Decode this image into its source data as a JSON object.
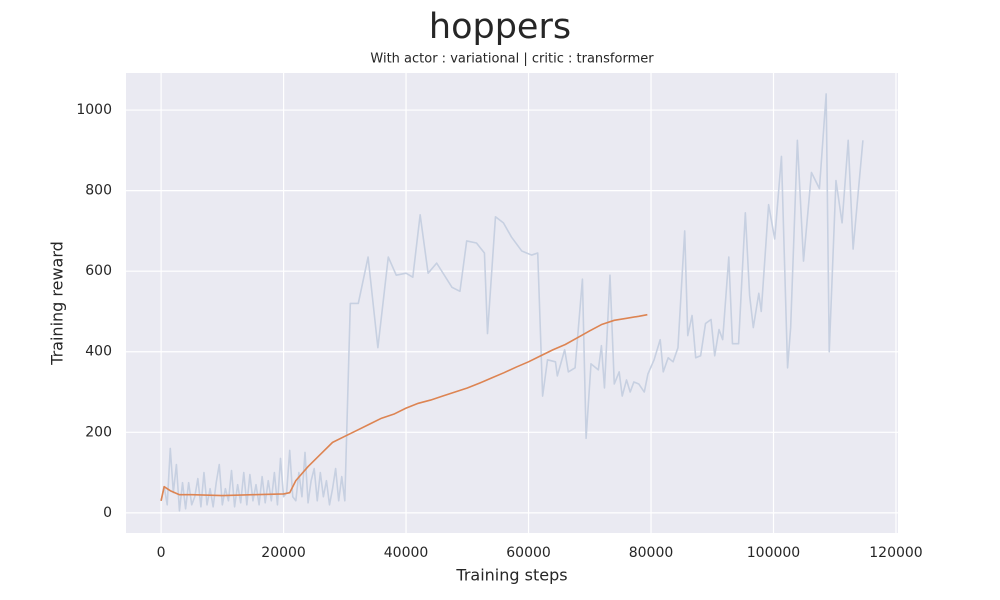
{
  "chart_data": {
    "type": "line",
    "title": "hoppers",
    "subtitle": "With actor : variational | critic : transformer",
    "x_label": "Training steps",
    "y_label": "Training reward",
    "xlim": [
      -5730,
      120330
    ],
    "ylim": [
      -50,
      1092
    ],
    "xticks": [
      0,
      20000,
      40000,
      60000,
      80000,
      100000,
      120000
    ],
    "yticks": [
      0,
      200,
      400,
      600,
      800,
      1000
    ],
    "grid": true,
    "series": [
      {
        "color": "#c7d0e1",
        "x": [
          0,
          500,
          1000,
          1500,
          2000,
          2500,
          3000,
          3500,
          4000,
          4500,
          5000,
          5500,
          6000,
          6500,
          7000,
          7500,
          8000,
          8500,
          9000,
          9500,
          10000,
          10500,
          11000,
          11500,
          12000,
          12500,
          13000,
          13500,
          14000,
          14500,
          15000,
          15500,
          16000,
          16500,
          17000,
          17500,
          18000,
          18500,
          19000,
          19500,
          20000,
          20500,
          21000,
          21500,
          22000,
          22500,
          23000,
          23500,
          24000,
          24500,
          25000,
          25500,
          26000,
          26500,
          27000,
          27500,
          28000,
          28500,
          29000,
          29500,
          30000,
          30900,
          32200,
          33800,
          35400,
          37100,
          38400,
          40000,
          41100,
          42300,
          43600,
          45000,
          47500,
          48800,
          49900,
          51500,
          52800,
          53300,
          54600,
          55900,
          57200,
          58900,
          60500,
          61500,
          62300,
          63100,
          64400,
          64700,
          65900,
          66500,
          67600,
          68800,
          69400,
          70200,
          71400,
          71900,
          72400,
          73300,
          74000,
          74800,
          75300,
          76000,
          76600,
          77200,
          78000,
          78900,
          79500,
          80500,
          81500,
          82000,
          82800,
          83600,
          84400,
          85500,
          86000,
          86700,
          87300,
          88100,
          88900,
          89800,
          90400,
          91100,
          91700,
          92700,
          93300,
          94300,
          95400,
          96100,
          96700,
          97600,
          98000,
          99200,
          100200,
          101300,
          102300,
          102800,
          103900,
          104900,
          106200,
          107500,
          108600,
          109100,
          110200,
          111200,
          112200,
          113000,
          114600
        ],
        "values": [
          30,
          65,
          20,
          160,
          50,
          120,
          5,
          75,
          10,
          75,
          20,
          40,
          85,
          15,
          100,
          20,
          60,
          15,
          75,
          120,
          20,
          60,
          30,
          105,
          15,
          70,
          25,
          100,
          20,
          95,
          30,
          70,
          20,
          90,
          25,
          80,
          30,
          100,
          20,
          135,
          40,
          50,
          155,
          40,
          30,
          100,
          40,
          150,
          25,
          80,
          110,
          30,
          100,
          40,
          80,
          20,
          60,
          110,
          30,
          90,
          30,
          520,
          520,
          635,
          410,
          635,
          590,
          595,
          585,
          740,
          595,
          620,
          560,
          550,
          675,
          670,
          645,
          445,
          735,
          720,
          685,
          650,
          640,
          645,
          290,
          380,
          375,
          340,
          405,
          350,
          360,
          580,
          185,
          370,
          355,
          415,
          310,
          590,
          320,
          350,
          290,
          330,
          300,
          325,
          320,
          300,
          345,
          380,
          430,
          350,
          385,
          375,
          410,
          700,
          440,
          490,
          385,
          390,
          470,
          480,
          390,
          455,
          430,
          635,
          420,
          420,
          745,
          540,
          460,
          545,
          500,
          765,
          680,
          885,
          360,
          460,
          925,
          625,
          845,
          805,
          1040,
          400,
          825,
          720,
          925,
          655,
          925
        ]
      },
      {
        "color": "#dd8452",
        "x": [
          0,
          500,
          1500,
          3000,
          5000,
          10000,
          15000,
          20000,
          21000,
          22000,
          24000,
          26000,
          28000,
          30000,
          32000,
          34000,
          36000,
          38000,
          40000,
          42000,
          44000,
          46000,
          48000,
          50000,
          52000,
          54000,
          56000,
          58000,
          60000,
          62000,
          64000,
          66000,
          68000,
          70000,
          72000,
          74000,
          76000,
          78000,
          79400
        ],
        "values": [
          30,
          65,
          55,
          45,
          45,
          43,
          45,
          47,
          50,
          80,
          115,
          145,
          175,
          190,
          205,
          220,
          235,
          245,
          260,
          272,
          280,
          290,
          300,
          310,
          322,
          335,
          348,
          362,
          375,
          390,
          405,
          418,
          435,
          452,
          468,
          478,
          483,
          488,
          492
        ]
      }
    ]
  }
}
